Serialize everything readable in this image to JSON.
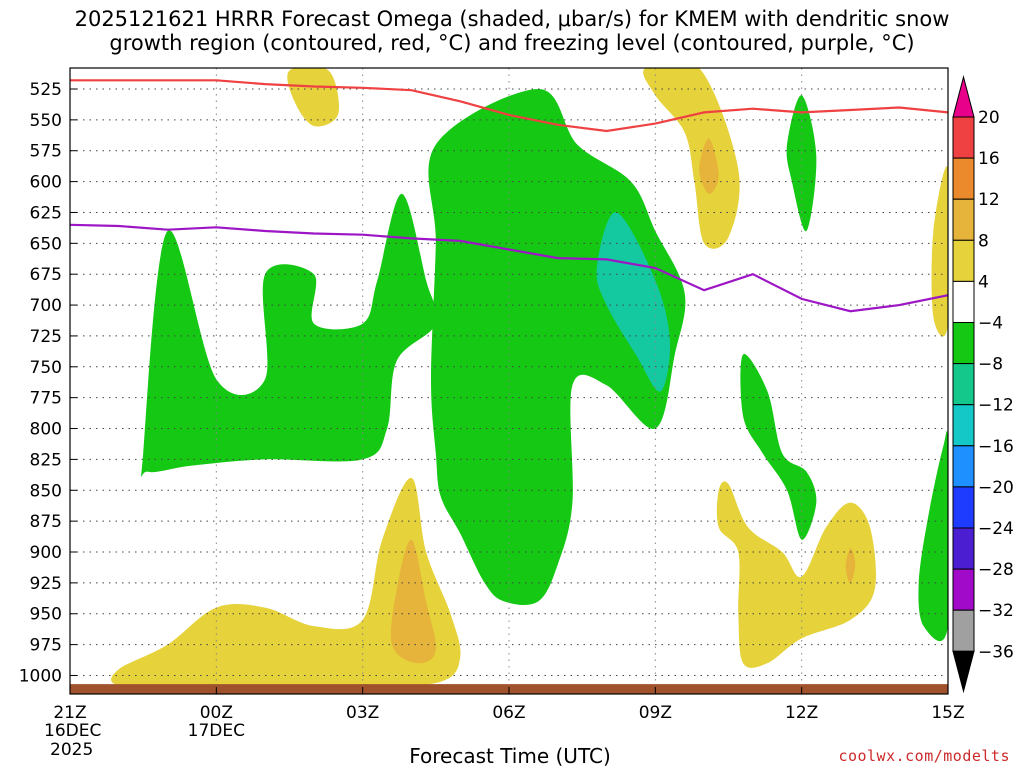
{
  "title": {
    "line1": "2025121621 HRRR Forecast Omega (shaded, μbar/s) for KMEM with dendritic snow",
    "line2": "growth region (contoured, red, °C) and freezing level (contoured, purple, °C)"
  },
  "xlabel": "Forecast Time (UTC)",
  "credit": "coolwx.com/modelts",
  "chart_data": {
    "type": "contour",
    "x_ticks": [
      {
        "hour": 0,
        "label": "21Z",
        "sub1": "16DEC",
        "sub2": "2025"
      },
      {
        "hour": 3,
        "label": "00Z",
        "sub1": "17DEC",
        "sub2": ""
      },
      {
        "hour": 6,
        "label": "03Z",
        "sub1": "",
        "sub2": ""
      },
      {
        "hour": 9,
        "label": "06Z",
        "sub1": "",
        "sub2": ""
      },
      {
        "hour": 12,
        "label": "09Z",
        "sub1": "",
        "sub2": ""
      },
      {
        "hour": 15,
        "label": "12Z",
        "sub1": "",
        "sub2": ""
      },
      {
        "hour": 18,
        "label": "15Z",
        "sub1": "",
        "sub2": ""
      }
    ],
    "xlim": [
      0,
      18
    ],
    "ylim": [
      508,
      1015
    ],
    "y_ticks": [
      525,
      550,
      575,
      600,
      625,
      650,
      675,
      700,
      725,
      750,
      775,
      800,
      825,
      850,
      875,
      900,
      925,
      950,
      975,
      1000
    ],
    "colorbar": {
      "levels": [
        "20",
        "16",
        "12",
        "8",
        "4",
        "−4",
        "−8",
        "−12",
        "−16",
        "−20",
        "−24",
        "−28",
        "−32",
        "−36"
      ],
      "colors": [
        "#e8008a",
        "#ef4142",
        "#ea8a2c",
        "#e6b43a",
        "#e6d23a",
        "#ffffff",
        "#14c814",
        "#14c88c",
        "#14c8c8",
        "#1e90ff",
        "#1e3cff",
        "#4b1ed2",
        "#a00ac8",
        "#a0a0a0",
        "#000000"
      ]
    },
    "shaded_regions": [
      {
        "fill": "#14c814",
        "pts": [
          [
            1.5,
            820
          ],
          [
            2.0,
            640
          ],
          [
            3.0,
            760
          ],
          [
            4.0,
            760
          ],
          [
            4.0,
            675
          ],
          [
            5.0,
            675
          ],
          [
            5.0,
            715
          ],
          [
            6.0,
            715
          ],
          [
            6.3,
            680
          ],
          [
            6.8,
            610
          ],
          [
            7.3,
            680
          ],
          [
            7.5,
            715
          ],
          [
            6.7,
            745
          ],
          [
            6.5,
            800
          ],
          [
            6.0,
            825
          ],
          [
            4.0,
            825
          ],
          [
            2.5,
            830
          ],
          [
            1.6,
            835
          ]
        ]
      },
      {
        "fill": "#14c814",
        "pts": [
          [
            9.6,
            525
          ],
          [
            10.4,
            570
          ],
          [
            11.5,
            600
          ],
          [
            12.0,
            640
          ],
          [
            12.6,
            690
          ],
          [
            12.4,
            740
          ],
          [
            12.0,
            800
          ],
          [
            11.0,
            765
          ],
          [
            10.3,
            765
          ],
          [
            10.3,
            860
          ],
          [
            10.0,
            910
          ],
          [
            9.6,
            940
          ],
          [
            8.9,
            940
          ],
          [
            8.5,
            925
          ],
          [
            8.0,
            885
          ],
          [
            7.6,
            855
          ],
          [
            7.5,
            820
          ],
          [
            7.4,
            760
          ],
          [
            7.5,
            650
          ],
          [
            7.5,
            570
          ]
        ]
      },
      {
        "fill": "#14c8a0",
        "pts": [
          [
            11.2,
            625
          ],
          [
            12.0,
            680
          ],
          [
            12.3,
            730
          ],
          [
            12.1,
            770
          ],
          [
            11.6,
            740
          ],
          [
            11.0,
            700
          ],
          [
            10.8,
            670
          ]
        ]
      },
      {
        "fill": "#14c814",
        "pts": [
          [
            13.8,
            740
          ],
          [
            14.3,
            770
          ],
          [
            14.6,
            820
          ],
          [
            15.1,
            835
          ],
          [
            15.3,
            860
          ],
          [
            15.0,
            890
          ],
          [
            14.7,
            850
          ],
          [
            14.2,
            820
          ],
          [
            13.8,
            790
          ]
        ]
      },
      {
        "fill": "#14c814",
        "pts": [
          [
            15.0,
            530
          ],
          [
            15.3,
            580
          ],
          [
            15.1,
            640
          ],
          [
            14.8,
            600
          ],
          [
            14.7,
            570
          ]
        ]
      },
      {
        "fill": "#14c814",
        "pts": [
          [
            17.9,
            815
          ],
          [
            18.0,
            815
          ],
          [
            18.0,
            960
          ],
          [
            17.5,
            960
          ],
          [
            17.4,
            925
          ],
          [
            17.6,
            870
          ]
        ]
      },
      {
        "fill": "#e6d23a",
        "pts": [
          [
            4.5,
            510
          ],
          [
            5.3,
            510
          ],
          [
            5.5,
            545
          ],
          [
            5.0,
            555
          ],
          [
            4.6,
            535
          ]
        ]
      },
      {
        "fill": "#e6d23a",
        "pts": [
          [
            11.8,
            508
          ],
          [
            12.9,
            508
          ],
          [
            13.7,
            590
          ],
          [
            13.5,
            645
          ],
          [
            13.0,
            650
          ],
          [
            12.8,
            600
          ],
          [
            12.6,
            560
          ],
          [
            12.0,
            530
          ]
        ]
      },
      {
        "fill": "#e6d23a",
        "pts": [
          [
            18.0,
            590
          ],
          [
            18.0,
            715
          ],
          [
            17.7,
            710
          ],
          [
            17.7,
            640
          ]
        ]
      },
      {
        "fill": "#e6d23a",
        "pts": [
          [
            1.0,
            995
          ],
          [
            2.0,
            975
          ],
          [
            3.0,
            945
          ],
          [
            4.0,
            945
          ],
          [
            5.0,
            960
          ],
          [
            6.0,
            955
          ],
          [
            6.4,
            890
          ],
          [
            7.0,
            840
          ],
          [
            7.3,
            900
          ],
          [
            7.8,
            950
          ],
          [
            8.0,
            985
          ],
          [
            7.6,
            1005
          ],
          [
            6.0,
            1010
          ],
          [
            4.0,
            1008
          ],
          [
            2.5,
            1008
          ],
          [
            1.0,
            1008
          ]
        ]
      },
      {
        "fill": "#e6d23a",
        "pts": [
          [
            13.3,
            850
          ],
          [
            13.5,
            845
          ],
          [
            13.9,
            880
          ],
          [
            14.6,
            900
          ],
          [
            15.0,
            920
          ],
          [
            15.5,
            880
          ],
          [
            16.0,
            860
          ],
          [
            16.4,
            880
          ],
          [
            16.5,
            930
          ],
          [
            16.0,
            955
          ],
          [
            15.0,
            970
          ],
          [
            14.3,
            990
          ],
          [
            13.8,
            990
          ],
          [
            13.7,
            950
          ],
          [
            13.7,
            900
          ],
          [
            13.3,
            880
          ]
        ]
      },
      {
        "fill": "#e6b43a",
        "pts": [
          [
            7.0,
            890
          ],
          [
            7.3,
            940
          ],
          [
            7.5,
            980
          ],
          [
            7.1,
            990
          ],
          [
            6.6,
            975
          ],
          [
            6.7,
            930
          ]
        ]
      },
      {
        "fill": "#e6b43a",
        "pts": [
          [
            13.1,
            565
          ],
          [
            13.3,
            595
          ],
          [
            13.1,
            610
          ],
          [
            12.9,
            590
          ]
        ]
      },
      {
        "fill": "#e6b43a",
        "pts": [
          [
            16.0,
            897
          ],
          [
            16.1,
            910
          ],
          [
            16.0,
            925
          ],
          [
            15.9,
            912
          ]
        ]
      }
    ],
    "red_line": {
      "name": "dendritic snow growth region",
      "color": "#ef4142",
      "pts": [
        [
          0,
          518
        ],
        [
          3,
          518
        ],
        [
          4,
          521
        ],
        [
          5,
          523
        ],
        [
          6,
          524
        ],
        [
          7,
          526
        ],
        [
          8,
          535
        ],
        [
          9,
          546
        ],
        [
          10,
          554
        ],
        [
          11,
          559
        ],
        [
          12,
          553
        ],
        [
          13,
          544
        ],
        [
          14,
          541
        ],
        [
          15,
          544
        ],
        [
          16,
          542
        ],
        [
          17,
          540
        ],
        [
          18,
          544
        ]
      ]
    },
    "purple_line": {
      "name": "freezing level",
      "color": "#9d16c6",
      "pts": [
        [
          0,
          635
        ],
        [
          1,
          636
        ],
        [
          2,
          639
        ],
        [
          3,
          637
        ],
        [
          4,
          640
        ],
        [
          5,
          642
        ],
        [
          6,
          643
        ],
        [
          7,
          646
        ],
        [
          8,
          648
        ],
        [
          9,
          655
        ],
        [
          10,
          662
        ],
        [
          11,
          663
        ],
        [
          12,
          670
        ],
        [
          13,
          688
        ],
        [
          14,
          675
        ],
        [
          15,
          695
        ],
        [
          16,
          705
        ],
        [
          17,
          700
        ],
        [
          18,
          692
        ]
      ]
    },
    "ground_band": {
      "color": "#a0522d",
      "p_top": 1007
    }
  }
}
